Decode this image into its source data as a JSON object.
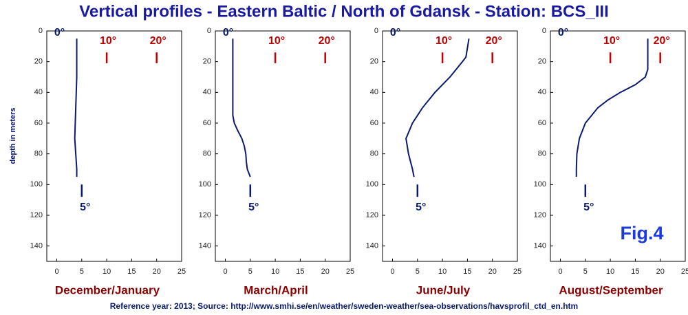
{
  "title": "Vertical profiles - Eastern Baltic / North of Gdansk - Station: BCS_III",
  "source": "Reference year: 2013; Source: http://www.smhi.se/en/weather/sweden-weather/sea-observations/havsprofil_ctd_en.htm",
  "figure_label": "Fig.4",
  "chart_data": [
    {
      "type": "line",
      "subtitle": "December/January",
      "ylabel": "depth in meters",
      "color": "#0a1a6e",
      "xlim": [
        -2,
        25
      ],
      "xticks": [
        0,
        5,
        10,
        15,
        20,
        25
      ],
      "ylim": [
        0,
        150
      ],
      "yticks": [
        0,
        20,
        40,
        60,
        80,
        100,
        120,
        140
      ],
      "y_inverted": true,
      "x": [
        4.0,
        4.0,
        4.0,
        4.0,
        3.9,
        3.8,
        3.7,
        3.6,
        3.8,
        4.0,
        4.0
      ],
      "values": [
        5,
        10,
        20,
        30,
        40,
        50,
        60,
        70,
        80,
        90,
        95
      ],
      "annotations": [
        {
          "text": "0°",
          "x": 0
        },
        {
          "text": "10°",
          "x": 10
        },
        {
          "text": "20°",
          "x": 20
        },
        {
          "text": "5°",
          "x": 5
        }
      ]
    },
    {
      "type": "line",
      "subtitle": "March/April",
      "color": "#0a1a6e",
      "xlim": [
        -2,
        25
      ],
      "xticks": [
        0,
        5,
        10,
        15,
        20,
        25
      ],
      "ylim": [
        0,
        150
      ],
      "yticks": [
        0,
        20,
        40,
        60,
        80,
        100,
        120,
        140
      ],
      "y_inverted": true,
      "x": [
        1.5,
        1.5,
        1.5,
        1.5,
        1.5,
        1.5,
        1.8,
        2.5,
        3.3,
        3.8,
        4.1,
        4.2,
        4.4,
        5.0
      ],
      "values": [
        5,
        10,
        20,
        30,
        40,
        55,
        60,
        65,
        70,
        75,
        80,
        85,
        90,
        95
      ],
      "annotations": [
        {
          "text": "0°",
          "x": 0
        },
        {
          "text": "10°",
          "x": 10
        },
        {
          "text": "20°",
          "x": 20
        },
        {
          "text": "5°",
          "x": 5
        }
      ]
    },
    {
      "type": "line",
      "subtitle": "June/July",
      "color": "#0a1a6e",
      "xlim": [
        -2,
        25
      ],
      "xticks": [
        0,
        5,
        10,
        15,
        20,
        25
      ],
      "ylim": [
        0,
        150
      ],
      "yticks": [
        0,
        20,
        40,
        60,
        80,
        100,
        120,
        140
      ],
      "y_inverted": true,
      "x": [
        15.3,
        14.7,
        14.0,
        11.5,
        8.5,
        6.0,
        4.0,
        2.7,
        3.2,
        4.0,
        4.3
      ],
      "values": [
        5,
        17,
        20,
        30,
        40,
        50,
        60,
        70,
        80,
        90,
        95
      ],
      "annotations": [
        {
          "text": "0°",
          "x": 0
        },
        {
          "text": "10°",
          "x": 10
        },
        {
          "text": "20°",
          "x": 20
        },
        {
          "text": "5°",
          "x": 5
        }
      ]
    },
    {
      "type": "line",
      "subtitle": "August/September",
      "color": "#0a1a6e",
      "xlim": [
        -2,
        25
      ],
      "xticks": [
        0,
        5,
        10,
        15,
        20,
        25
      ],
      "ylim": [
        0,
        150
      ],
      "yticks": [
        0,
        20,
        40,
        60,
        80,
        100,
        120,
        140
      ],
      "y_inverted": true,
      "x": [
        17.5,
        17.5,
        17.5,
        17.0,
        15.0,
        12.0,
        9.5,
        7.5,
        5.0,
        3.8,
        3.3,
        3.2,
        3.2
      ],
      "values": [
        5,
        15,
        25,
        30,
        35,
        40,
        45,
        50,
        60,
        70,
        80,
        90,
        95
      ],
      "annotations": [
        {
          "text": "0°",
          "x": 0
        },
        {
          "text": "10°",
          "x": 10
        },
        {
          "text": "20°",
          "x": 20
        },
        {
          "text": "5°",
          "x": 5
        }
      ]
    }
  ]
}
